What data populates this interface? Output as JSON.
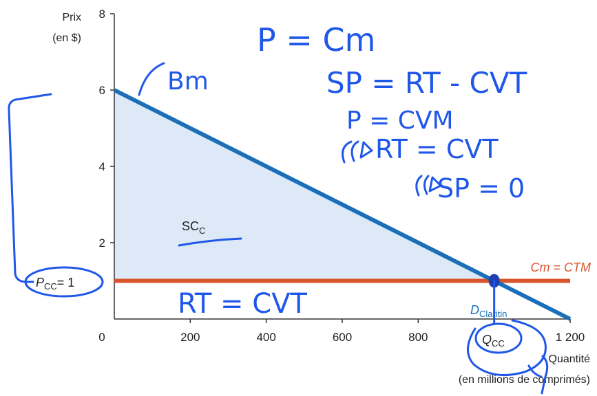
{
  "chart_data": {
    "type": "line",
    "ylabel": [
      "Prix",
      "(en $)"
    ],
    "xlabel": [
      "Quantité",
      "(en millions de comprimés)"
    ],
    "xlim": [
      0,
      1200
    ],
    "ylim": [
      0,
      8
    ],
    "x_ticks": [
      0,
      200,
      400,
      600,
      800,
      1000,
      1200
    ],
    "x_tick_labels": [
      "0",
      "200",
      "400",
      "600",
      "800",
      "",
      "1 200"
    ],
    "y_ticks": [
      0,
      2,
      4,
      6,
      8
    ],
    "y_tick_labels": [
      "0",
      "2",
      "4",
      "6",
      "8"
    ],
    "series": [
      {
        "name": "D",
        "name_sub": "Claritin",
        "color": "#1b6fb8",
        "points": [
          [
            0,
            6
          ],
          [
            1200,
            0
          ]
        ]
      },
      {
        "name": "Cm = CTM",
        "color": "#d9542a",
        "points": [
          [
            0,
            1
          ],
          [
            1200,
            1
          ]
        ]
      }
    ],
    "surplus_area": {
      "label": "SC",
      "label_sub": "C",
      "fill": "#dde9f6",
      "points": [
        [
          0,
          6
        ],
        [
          1000,
          1
        ],
        [
          0,
          1
        ]
      ]
    },
    "price_label": {
      "main": "P",
      "sub": "CC",
      "rest": "= 1",
      "value": 1
    },
    "quantity_label": {
      "main": "Q",
      "sub": "CC",
      "value": 1000
    },
    "grid": false
  },
  "annotations": {
    "bm": "Bm",
    "p_cm": "P = Cm",
    "sp": "SP = RT - CVT",
    "p_cvm": "P = CVM",
    "rt_cvt": "RT = CVT",
    "sp_zero": "SP = 0",
    "rt_cvt_bottom": "RT = CVT"
  }
}
